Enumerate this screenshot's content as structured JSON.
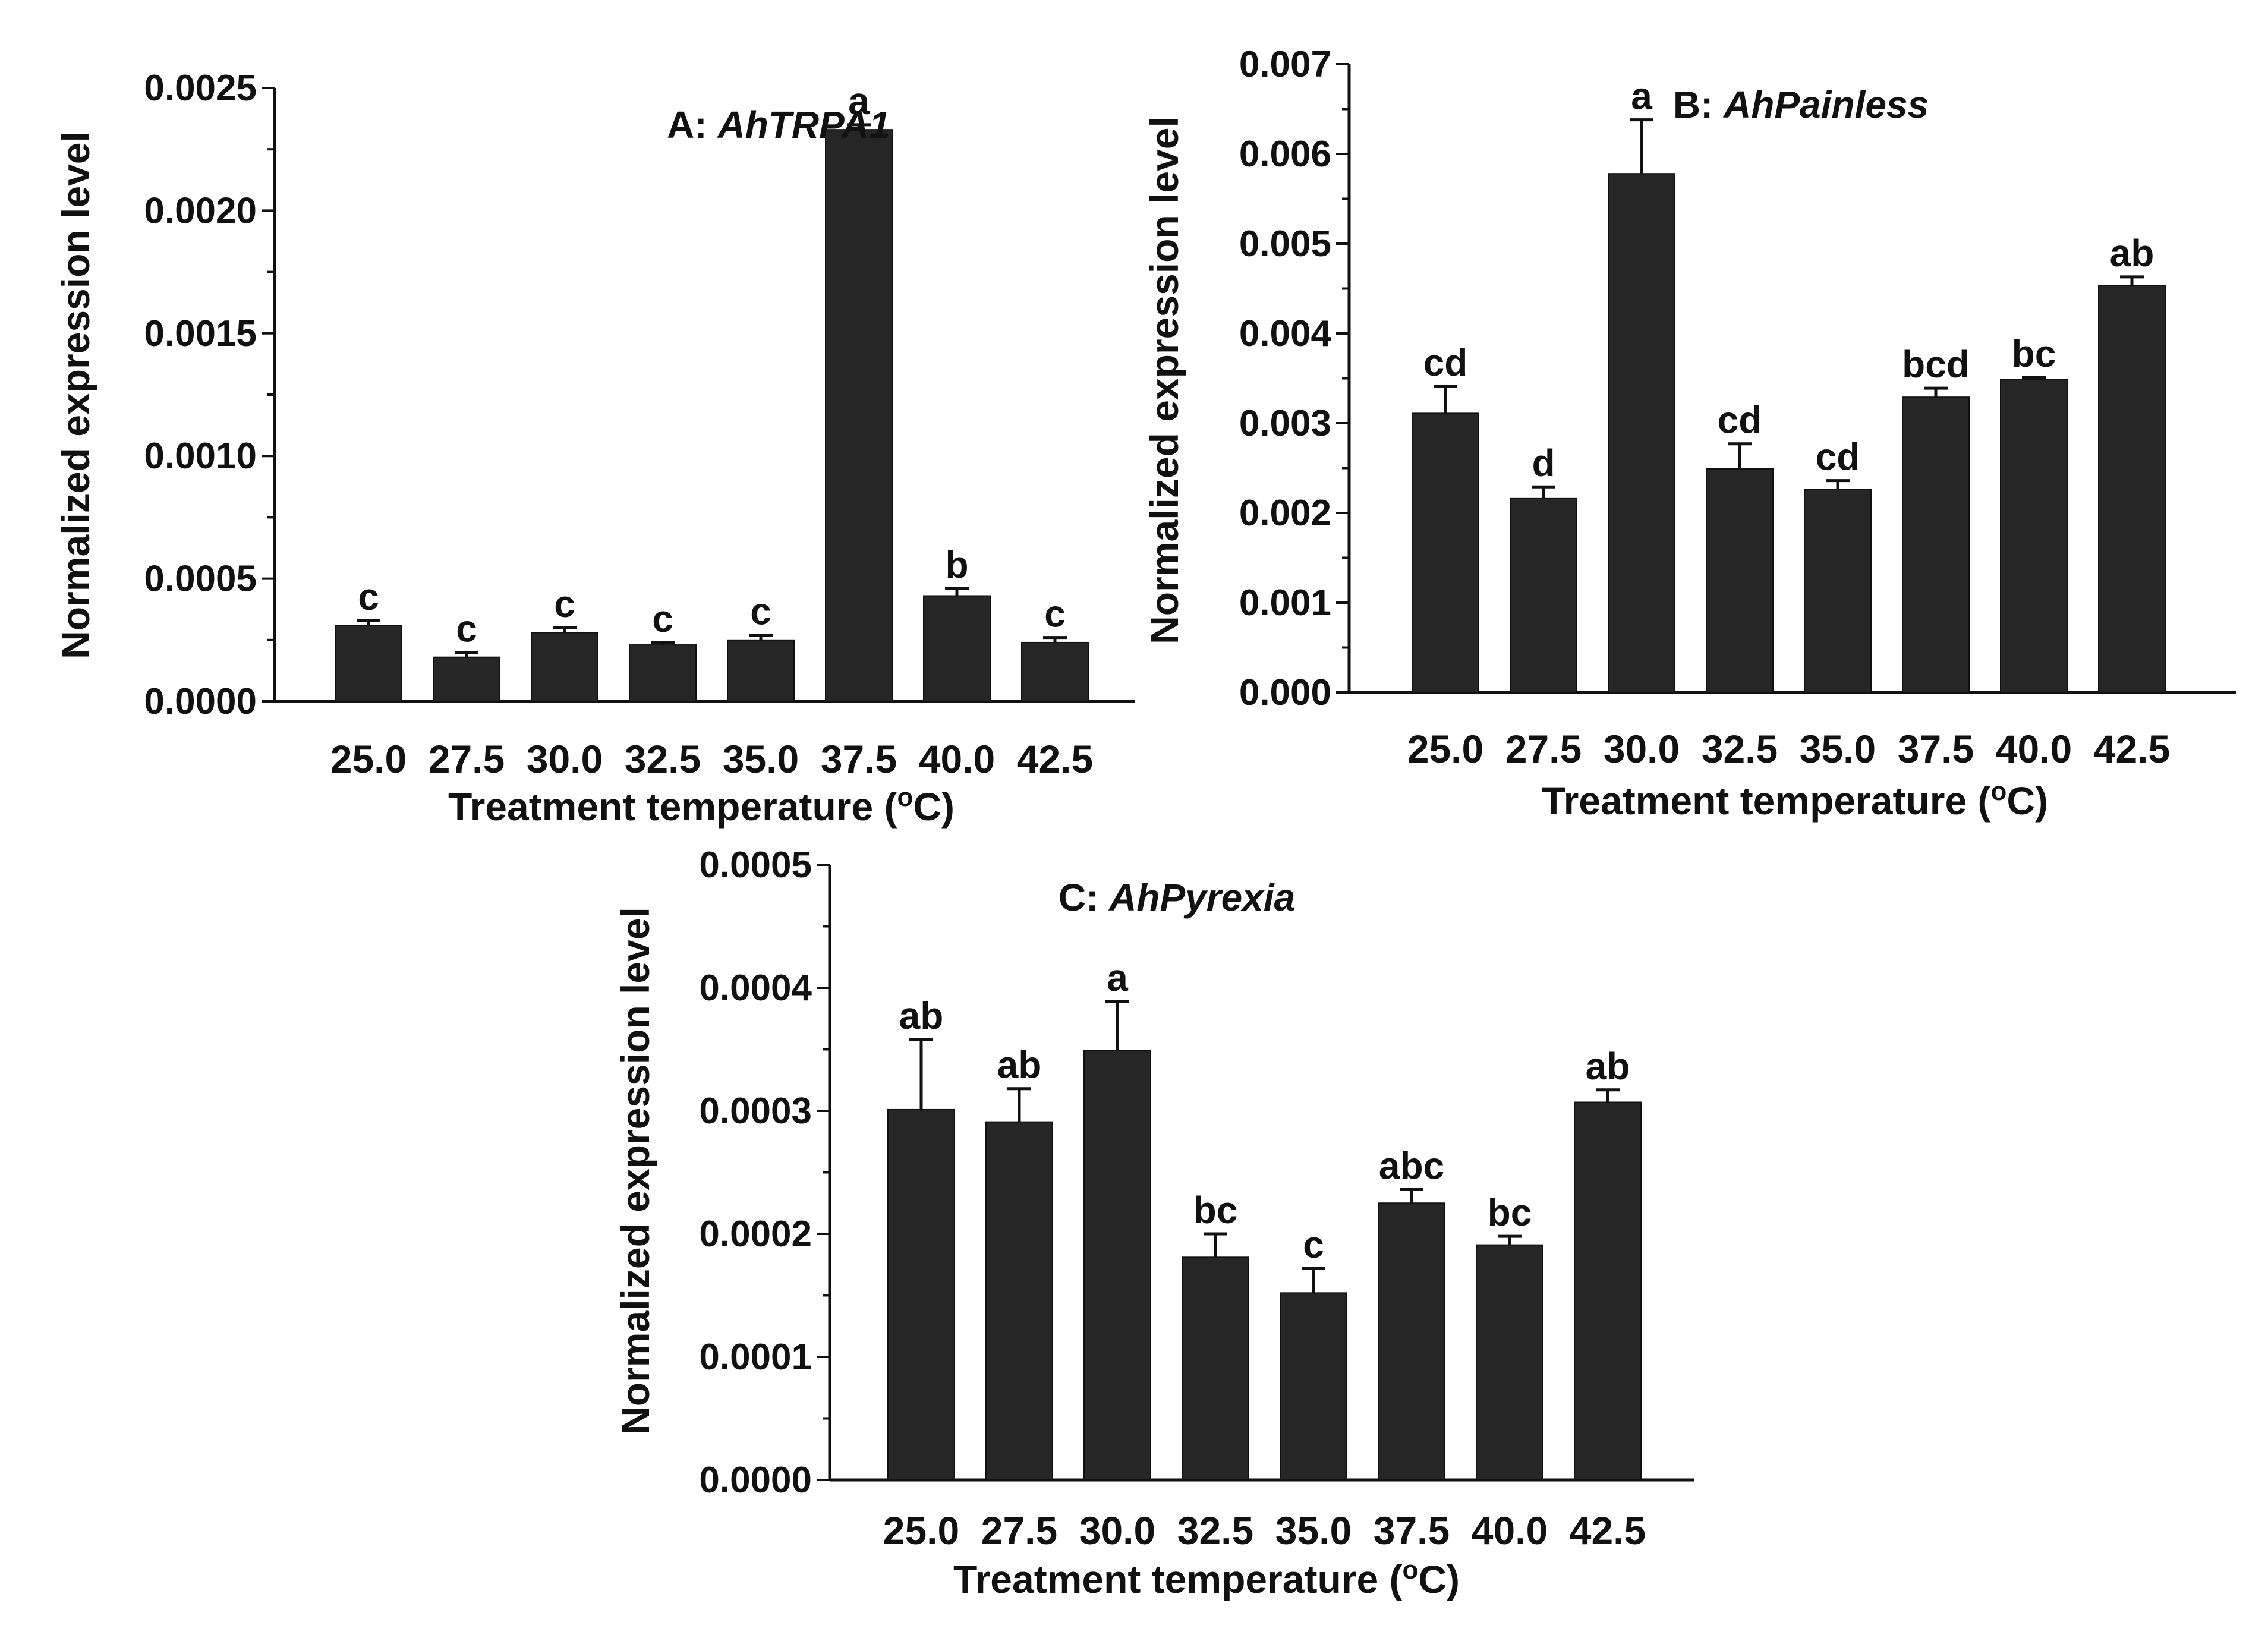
{
  "chart_data": [
    {
      "id": "A",
      "type": "bar",
      "title_prefix": "A: ",
      "title_gene": "AhTRPA1",
      "xlabel": "Treatment temperature (",
      "xlabel_sup": "o",
      "xlabel_suffix": "C)",
      "ylabel": "Normalized expression level",
      "categories": [
        "25.0",
        "27.5",
        "30.0",
        "32.5",
        "35.0",
        "37.5",
        "40.0",
        "42.5"
      ],
      "values": [
        0.00031,
        0.00018,
        0.00028,
        0.00023,
        0.00025,
        0.00233,
        0.00043,
        0.00024
      ],
      "errors": [
        2e-05,
        2e-05,
        2e-05,
        1e-05,
        2e-05,
        2e-05,
        3e-05,
        2e-05
      ],
      "letters": [
        "c",
        "c",
        "c",
        "c",
        "c",
        "a",
        "b",
        "c"
      ],
      "ylim": [
        0,
        0.0025
      ],
      "yticks": [
        "0.0000",
        "0.0005",
        "0.0010",
        "0.0015",
        "0.0020",
        "0.0025"
      ],
      "bar_color": "#262626"
    },
    {
      "id": "B",
      "type": "bar",
      "title_prefix": "B: ",
      "title_gene": "AhPainless",
      "xlabel": "Treatment temperature (",
      "xlabel_sup": "o",
      "xlabel_suffix": "C)",
      "ylabel": "Normalized expression level",
      "categories": [
        "25.0",
        "27.5",
        "30.0",
        "32.5",
        "35.0",
        "37.5",
        "40.0",
        "42.5"
      ],
      "values": [
        0.00311,
        0.00216,
        0.00578,
        0.00249,
        0.00226,
        0.00329,
        0.00349,
        0.00453
      ],
      "errors": [
        0.0003,
        0.00013,
        0.0006,
        0.00028,
        0.0001,
        0.0001,
        2e-05,
        0.0001
      ],
      "letters": [
        "cd",
        "d",
        "a",
        "cd",
        "cd",
        "bcd",
        "bc",
        "ab"
      ],
      "ylim": [
        0,
        0.007
      ],
      "yticks": [
        "0.000",
        "0.001",
        "0.002",
        "0.003",
        "0.004",
        "0.005",
        "0.006",
        "0.007"
      ],
      "bar_color": "#262626"
    },
    {
      "id": "C",
      "type": "bar",
      "title_prefix": "C: ",
      "title_gene": "AhPyrexia",
      "xlabel": "Treatment temperature (",
      "xlabel_sup": "o",
      "xlabel_suffix": "C)",
      "ylabel": "Normalized expression level",
      "categories": [
        "25.0",
        "27.5",
        "30.0",
        "32.5",
        "35.0",
        "37.5",
        "40.0",
        "42.5"
      ],
      "values": [
        0.000301,
        0.000291,
        0.000349,
        0.000181,
        0.000152,
        0.000225,
        0.000191,
        0.000307
      ],
      "errors": [
        5.7e-05,
        2.7e-05,
        4e-05,
        1.9e-05,
        2e-05,
        1.1e-05,
        7e-06,
        1e-05
      ],
      "letters": [
        "ab",
        "ab",
        "a",
        "bc",
        "c",
        "abc",
        "bc",
        "ab"
      ],
      "ylim": [
        0,
        0.0005
      ],
      "yticks": [
        "0.0000",
        "0.0001",
        "0.0002",
        "0.0003",
        "0.0004",
        "0.0005"
      ],
      "bar_color": "#262626"
    }
  ]
}
